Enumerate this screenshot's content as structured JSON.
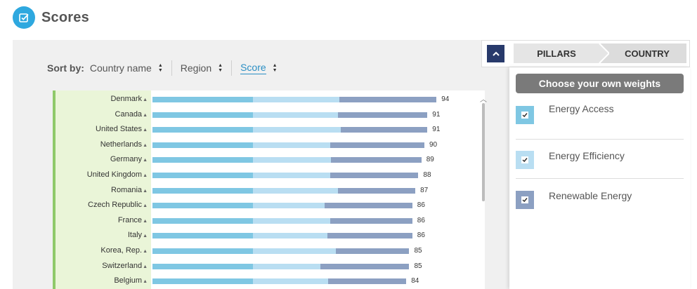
{
  "header": {
    "title": "Scores",
    "icon": "checkbox-square-icon",
    "icon_color": "#2ea8df"
  },
  "sort": {
    "label": "Sort by:",
    "options": [
      {
        "label": "Country name",
        "active": false
      },
      {
        "label": "Region",
        "active": false
      },
      {
        "label": "Score",
        "active": true
      }
    ]
  },
  "tabs": {
    "pillars": "PILLARS",
    "country": "COUNTRY",
    "collapse_icon": "chevron-up-icon"
  },
  "weights": {
    "button_label": "Choose your own weights",
    "pillars": [
      {
        "label": "Energy Access",
        "color": "#7fc7e3",
        "checked": true
      },
      {
        "label": "Energy Efficiency",
        "color": "#b9def2",
        "checked": true
      },
      {
        "label": "Renewable Energy",
        "color": "#8ca0c2",
        "checked": true
      }
    ]
  },
  "colors": {
    "access": "#7fc7e3",
    "efficiency": "#b9def2",
    "renewable": "#8ca0c2",
    "region_band": "#eaf5d8",
    "region_border": "#8fc96a"
  },
  "chart_data": {
    "type": "bar",
    "stacked": true,
    "orientation": "horizontal",
    "series_names": [
      "Energy Access",
      "Energy Efficiency",
      "Renewable Energy"
    ],
    "categories": [
      "Denmark",
      "Canada",
      "United States",
      "Netherlands",
      "Germany",
      "United Kingdom",
      "Romania",
      "Czech Republic",
      "France",
      "Italy",
      "Korea, Rep.",
      "Switzerland",
      "Belgium"
    ],
    "totals": [
      94,
      91,
      91,
      90,
      89,
      88,
      87,
      86,
      86,
      86,
      85,
      85,
      84
    ],
    "segments": [
      [
        33.3,
        28.6,
        32.1
      ],
      [
        33.3,
        28.1,
        29.6
      ],
      [
        33.3,
        29.0,
        28.7
      ],
      [
        33.3,
        25.5,
        31.2
      ],
      [
        33.3,
        25.7,
        30.0
      ],
      [
        33.3,
        25.5,
        29.2
      ],
      [
        33.3,
        28.1,
        25.6
      ],
      [
        33.3,
        23.6,
        29.1
      ],
      [
        33.3,
        25.5,
        27.2
      ],
      [
        33.3,
        24.5,
        28.2
      ],
      [
        33.3,
        27.4,
        24.3
      ],
      [
        33.3,
        22.2,
        29.5
      ],
      [
        33.3,
        24.8,
        25.9
      ]
    ]
  }
}
